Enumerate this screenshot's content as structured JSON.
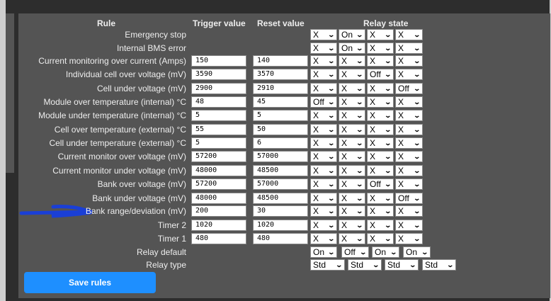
{
  "headers": {
    "rule": "Rule",
    "trigger": "Trigger value",
    "reset": "Reset value",
    "relay": "Relay state"
  },
  "rules": [
    {
      "label": "Emergency stop",
      "trigger": null,
      "reset": null,
      "relays": [
        "X",
        "On",
        "X",
        "X"
      ]
    },
    {
      "label": "Internal BMS error",
      "trigger": null,
      "reset": null,
      "relays": [
        "X",
        "On",
        "X",
        "X"
      ]
    },
    {
      "label": "Current monitoring over current (Amps)",
      "trigger": "150",
      "reset": "140",
      "relays": [
        "X",
        "X",
        "X",
        "X"
      ]
    },
    {
      "label": "Individual cell over voltage (mV)",
      "trigger": "3590",
      "reset": "3570",
      "relays": [
        "X",
        "X",
        "Off",
        "X"
      ]
    },
    {
      "label": "Cell under voltage (mV)",
      "trigger": "2900",
      "reset": "2910",
      "relays": [
        "X",
        "X",
        "X",
        "Off"
      ]
    },
    {
      "label": "Module over temperature (internal) °C",
      "trigger": "48",
      "reset": "45",
      "relays": [
        "Off",
        "X",
        "X",
        "X"
      ]
    },
    {
      "label": "Module under temperature (internal) °C",
      "trigger": "5",
      "reset": "5",
      "relays": [
        "X",
        "X",
        "X",
        "X"
      ]
    },
    {
      "label": "Cell over temperature (external) °C",
      "trigger": "55",
      "reset": "50",
      "relays": [
        "X",
        "X",
        "X",
        "X"
      ]
    },
    {
      "label": "Cell under temperature (external) °C",
      "trigger": "5",
      "reset": "6",
      "relays": [
        "X",
        "X",
        "X",
        "X"
      ]
    },
    {
      "label": "Current monitor over voltage (mV)",
      "trigger": "57200",
      "reset": "57000",
      "relays": [
        "X",
        "X",
        "X",
        "X"
      ]
    },
    {
      "label": "Current monitor under voltage (mV)",
      "trigger": "48000",
      "reset": "48500",
      "relays": [
        "X",
        "X",
        "X",
        "X"
      ]
    },
    {
      "label": "Bank over voltage (mV)",
      "trigger": "57200",
      "reset": "57000",
      "relays": [
        "X",
        "X",
        "Off",
        "X"
      ]
    },
    {
      "label": "Bank under voltage (mV)",
      "trigger": "48000",
      "reset": "48500",
      "relays": [
        "X",
        "X",
        "X",
        "Off"
      ]
    },
    {
      "label": "Bank range/deviation (mV)",
      "trigger": "200",
      "reset": "30",
      "relays": [
        "X",
        "X",
        "X",
        "X"
      ]
    },
    {
      "label": "Timer 2",
      "trigger": "1020",
      "reset": "1020",
      "relays": [
        "X",
        "X",
        "X",
        "X"
      ]
    },
    {
      "label": "Timer 1",
      "trigger": "480",
      "reset": "480",
      "relays": [
        "X",
        "X",
        "X",
        "X"
      ]
    }
  ],
  "relay_default": {
    "label": "Relay default",
    "values": [
      "On",
      "Off",
      "On",
      "On"
    ]
  },
  "relay_type": {
    "label": "Relay type",
    "values": [
      "Std",
      "Std",
      "Std",
      "Std"
    ]
  },
  "save_label": "Save rules",
  "annotation_color": "#1a3fd6"
}
